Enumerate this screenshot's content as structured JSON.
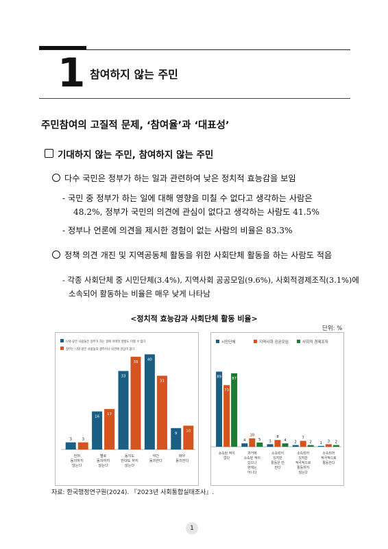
{
  "chapter": {
    "number": "1",
    "title": "참여하지 않는 주민"
  },
  "section_title": "주민참여의 고질적 문제, ‘참여율’과 ‘대표성’",
  "subsection_title": "기대하지 않는 주민, 참여하지 않는 주민",
  "bullets": [
    {
      "text": "다수 국민은 정부가 하는 일과 관련하여 낮은 정치적 효능감을 보임",
      "subs": [
        [
          "- 국민 중 정부가 하는 일에 대해 영향을 미칠 수 없다고 생각하는 사람은",
          "48.2%, 정부가 국민의 의견에 관심이 없다고 생각하는 사람도 41.5%"
        ],
        [
          "- 정부나 언론에 의견을 제시한 경험이 없는 사람의 비율은 83.3%"
        ]
      ]
    },
    {
      "text": "정책 의견 개진 및 지역공동체 활동을 위한 사회단체 활동을 하는 사람도 적음",
      "subs": [
        [
          "- 각종 사회단체 중 시민단체(3.4%), 지역사회 공공모임(9.6%), 사회적경제조직(3.1%)에",
          "소속되어 활동하는 비율은 매우 낮게 나타남"
        ]
      ]
    }
  ],
  "chart_caption": "<정치적 효능감과 사회단체 활동 비율>",
  "unit_label": "단위: %",
  "source": "자료: 한국행정연구원(2024). 『2023년 사회통합실태조사』.",
  "page_number": "1",
  "colors": {
    "blue": "#1b5e84",
    "orange": "#d4531f",
    "green": "#1e7b34"
  },
  "chart_data": [
    {
      "type": "bar",
      "categories": [
        [
          "전혀",
          "동의하지",
          "않는다"
        ],
        [
          "별로",
          "동의하지",
          "않는다"
        ],
        [
          "동의도",
          "반대도 하지",
          "않는다"
        ],
        [
          "약간",
          "동의한다"
        ],
        [
          "매우",
          "동의한다"
        ]
      ],
      "series": [
        {
          "name": "나와 같은 사람들은 정부가 하는 일에 어떠한 영향도 미칠 수 없다",
          "values": [
            3,
            16,
            33,
            40,
            9
          ],
          "color": "#1b5e84"
        },
        {
          "name": "정부는 나와 같은 사람들의 생각이나 의견에 관심이 없다",
          "values": [
            3,
            17,
            39,
            31,
            10
          ],
          "color": "#d4531f"
        }
      ],
      "ylim": [
        0,
        45
      ],
      "legend": "top-left"
    },
    {
      "type": "bar",
      "categories": [
        [
          "소속된 적이",
          "없다"
        ],
        [
          "과거에",
          "소속된 적이",
          "있으나",
          "현재는",
          "아니다"
        ],
        [
          "소속되어",
          "있지만",
          "활동은 안",
          "한다"
        ],
        [
          "소속되어",
          "있지만",
          "적극적으로",
          "활동하지",
          "않는다"
        ],
        [
          "소속되어",
          "적극적으로",
          "활동한다"
        ]
      ],
      "series": [
        {
          "name": "시민단체",
          "values": [
            89,
            4,
            3,
            2,
            1
          ],
          "color": "#1b5e84"
        },
        {
          "name": "지역사회 공공모임",
          "values": [
            73,
            10,
            8,
            7,
            3
          ],
          "color": "#d4531f"
        },
        {
          "name": "사회적 경제조직",
          "values": [
            87,
            5,
            4,
            2,
            2
          ],
          "color": "#1e7b34"
        }
      ],
      "ylim": [
        0,
        100
      ],
      "legend": "top-left"
    }
  ]
}
